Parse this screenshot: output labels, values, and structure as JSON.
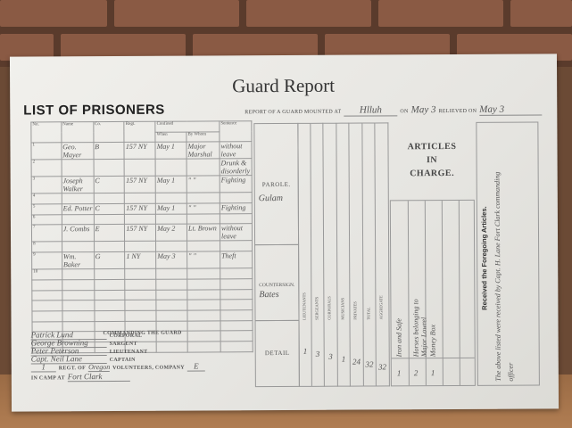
{
  "document": {
    "title": "Guard Report",
    "list_heading": "LIST OF PRISONERS",
    "mounted_label": "Report of a Guard Mounted at",
    "mounted_at": "Hlluh",
    "on_label": "on",
    "on_date": "May 3",
    "relieved_label": "Relieved on",
    "relieved_date": "May 3",
    "prisoner_columns": [
      "No.",
      "Name",
      "Co.",
      "Regt.",
      "Confined",
      "Sentence"
    ],
    "confined_sub": [
      "When",
      "By Whom"
    ],
    "prisoners": [
      {
        "no": "1",
        "name": "Geo. Mayer",
        "co": "B",
        "regt": "157 NY",
        "when": "May 1",
        "by": "Major Marshal",
        "sentence": "without leave"
      },
      {
        "no": "2",
        "name": "",
        "co": "",
        "regt": "",
        "when": "",
        "by": "",
        "sentence": "Drunk & disorderly"
      },
      {
        "no": "3",
        "name": "Joseph Walker",
        "co": "C",
        "regt": "157 NY",
        "when": "May 1",
        "by": "\"  \"",
        "sentence": "Fighting"
      },
      {
        "no": "4",
        "name": "",
        "co": "",
        "regt": "",
        "when": "",
        "by": "",
        "sentence": ""
      },
      {
        "no": "5",
        "name": "Ed. Potter",
        "co": "C",
        "regt": "157 NY",
        "when": "May 1",
        "by": "\"  \"",
        "sentence": "Fighting"
      },
      {
        "no": "6",
        "name": "",
        "co": "",
        "regt": "",
        "when": "",
        "by": "",
        "sentence": ""
      },
      {
        "no": "7",
        "name": "J. Combs",
        "co": "E",
        "regt": "157 NY",
        "when": "May 2",
        "by": "Lt. Brown",
        "sentence": "without leave"
      },
      {
        "no": "8",
        "name": "",
        "co": "",
        "regt": "",
        "when": "",
        "by": "",
        "sentence": ""
      },
      {
        "no": "9",
        "name": "Wm. Baker",
        "co": "G",
        "regt": "1 NY",
        "when": "May 3",
        "by": "\"  \"",
        "sentence": "Theft"
      },
      {
        "no": "10",
        "name": "",
        "co": "",
        "regt": "",
        "when": "",
        "by": "",
        "sentence": ""
      }
    ],
    "commanding_heading": "COMMANDING THE GUARD",
    "officers": [
      {
        "name": "Patrick Lund",
        "rank": "CORPORAL"
      },
      {
        "name": "George Browning",
        "rank": "SARGENT"
      },
      {
        "name": "Peter Peterson",
        "rank": "LIEUTENANT"
      },
      {
        "name": "Capt. Neil Lane",
        "rank": "CAPTAIN"
      }
    ],
    "regt_value": "1",
    "regt_label": "REGT. OF",
    "volunteers_value": "Oregon",
    "volunteers_label": "VOLUNTEERS, COMPANY",
    "company_value": "E",
    "camp_label": "IN CAMP AT",
    "camp_value": "Fort Clark",
    "parole_label": "PAROLE.",
    "parole_value": "Gulam",
    "countersign_label": "COUNTERSIGN.",
    "countersign_value": "Bates",
    "detail_label": "DETAIL",
    "detail_columns": [
      {
        "label": "Lieutenants",
        "value": "1"
      },
      {
        "label": "Sergeants",
        "value": "3"
      },
      {
        "label": "Corporals",
        "value": "3"
      },
      {
        "label": "Musicians",
        "value": "1"
      },
      {
        "label": "Privates",
        "value": "24"
      },
      {
        "label": "Total",
        "value": "32"
      },
      {
        "label": "Aggregate",
        "value": "32"
      }
    ],
    "articles_heading": [
      "ARTICLES",
      "IN",
      "CHARGE."
    ],
    "articles": [
      {
        "qty": "1",
        "item": "Iron and Safe"
      },
      {
        "qty": "2",
        "item": "Horses belonging to Major Lowrel"
      },
      {
        "qty": "1",
        "item": "Money Box"
      }
    ],
    "received_label": "Received the Foregoing Articles.",
    "received_note": "The above listed were received by Capt. H. Lane Fort Clark commanding officer"
  }
}
